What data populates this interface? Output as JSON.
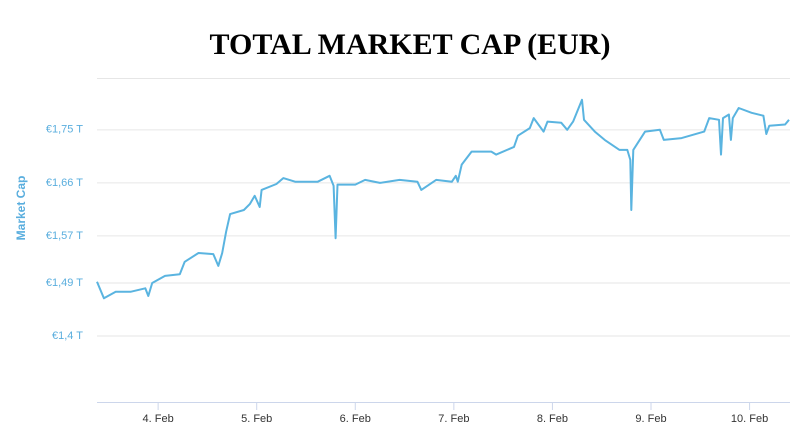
{
  "chart_data": {
    "type": "line",
    "title": "TOTAL MARKET CAP (EUR)",
    "y_label": "Market Cap",
    "grid": true,
    "x": [
      3.38,
      3.45,
      3.57,
      3.72,
      3.87,
      3.9,
      3.94,
      4.07,
      4.22,
      4.27,
      4.41,
      4.56,
      4.61,
      4.65,
      4.69,
      4.73,
      4.87,
      4.93,
      4.98,
      5.03,
      5.05,
      5.2,
      5.27,
      5.39,
      5.62,
      5.74,
      5.78,
      5.8,
      5.82,
      6.0,
      6.1,
      6.25,
      6.45,
      6.63,
      6.67,
      6.82,
      6.98,
      7.02,
      7.04,
      7.08,
      7.18,
      7.38,
      7.43,
      7.61,
      7.65,
      7.77,
      7.81,
      7.91,
      7.95,
      8.09,
      8.15,
      8.21,
      8.3,
      8.32,
      8.43,
      8.53,
      8.68,
      8.76,
      8.79,
      8.8,
      8.82,
      8.94,
      9.09,
      9.13,
      9.31,
      9.54,
      9.59,
      9.69,
      9.71,
      9.73,
      9.79,
      9.81,
      9.83,
      9.89,
      10.02,
      10.14,
      10.17,
      10.2,
      10.36,
      10.4
    ],
    "series": [
      {
        "name": "Market Cap",
        "color": "#5ab4e0",
        "values": [
          1.492,
          1.464,
          1.475,
          1.475,
          1.481,
          1.468,
          1.49,
          1.502,
          1.505,
          1.526,
          1.541,
          1.539,
          1.519,
          1.541,
          1.577,
          1.607,
          1.614,
          1.624,
          1.638,
          1.619,
          1.648,
          1.658,
          1.668,
          1.662,
          1.662,
          1.672,
          1.655,
          1.566,
          1.657,
          1.657,
          1.665,
          1.66,
          1.665,
          1.662,
          1.648,
          1.665,
          1.662,
          1.672,
          1.662,
          1.691,
          1.713,
          1.713,
          1.708,
          1.721,
          1.74,
          1.753,
          1.77,
          1.747,
          1.764,
          1.762,
          1.75,
          1.764,
          1.801,
          1.767,
          1.747,
          1.733,
          1.716,
          1.716,
          1.699,
          1.614,
          1.716,
          1.747,
          1.75,
          1.733,
          1.736,
          1.747,
          1.77,
          1.767,
          1.708,
          1.77,
          1.776,
          1.733,
          1.77,
          1.787,
          1.779,
          1.774,
          1.743,
          1.757,
          1.759,
          1.767
        ]
      }
    ],
    "xlim": [
      3.38,
      10.41
    ],
    "xticks": [
      {
        "value": 4,
        "label": "4. Feb"
      },
      {
        "value": 5,
        "label": "5. Feb"
      },
      {
        "value": 6,
        "label": "6. Feb"
      },
      {
        "value": 7,
        "label": "7. Feb"
      },
      {
        "value": 8,
        "label": "8. Feb"
      },
      {
        "value": 9,
        "label": "9. Feb"
      },
      {
        "value": 10,
        "label": "10. Feb"
      }
    ],
    "ylim": [
      1.288,
      1.838
    ],
    "yticks": [
      {
        "value": 1.4,
        "label": "€1,4 T"
      },
      {
        "value": 1.49,
        "label": "€1,49 T"
      },
      {
        "value": 1.57,
        "label": "€1,57 T"
      },
      {
        "value": 1.66,
        "label": "€1,66 T"
      },
      {
        "value": 1.75,
        "label": "€1,75 T"
      }
    ]
  }
}
